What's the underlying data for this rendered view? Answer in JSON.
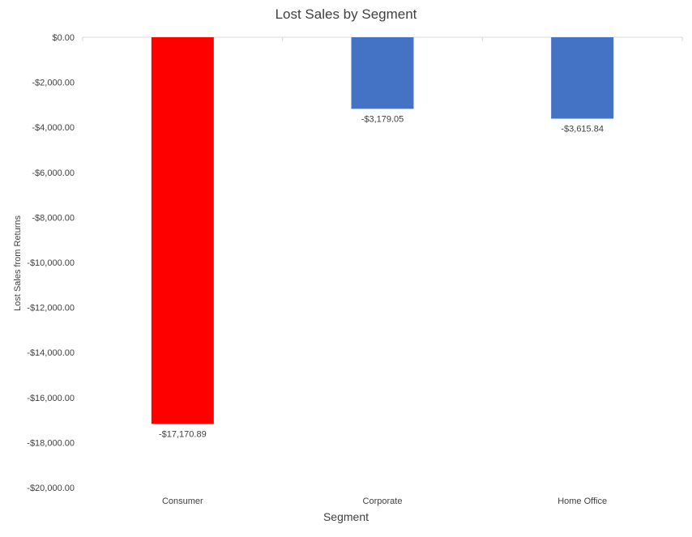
{
  "chart_data": {
    "type": "bar",
    "title": "Lost Sales by Segment",
    "xlabel": "Segment",
    "ylabel": "Lost Sales from Returns",
    "categories": [
      "Consumer",
      "Corporate",
      "Home Office"
    ],
    "values": [
      -17170.89,
      -3179.05,
      -3615.84
    ],
    "data_labels": [
      "-$17,170.89",
      "-$3,179.05",
      "-$3,615.84"
    ],
    "bar_colors": [
      "#ff0000",
      "#4472c4",
      "#4472c4"
    ],
    "ylim": [
      -20000,
      0
    ],
    "y_ticks": [
      0,
      -2000,
      -4000,
      -6000,
      -8000,
      -10000,
      -12000,
      -14000,
      -16000,
      -18000,
      -20000
    ],
    "y_tick_labels": [
      "$0.00",
      "-$2,000.00",
      "-$4,000.00",
      "-$6,000.00",
      "-$8,000.00",
      "-$10,000.00",
      "-$12,000.00",
      "-$14,000.00",
      "-$16,000.00",
      "-$18,000.00",
      "-$20,000.00"
    ],
    "grid": false,
    "legend": "none"
  }
}
